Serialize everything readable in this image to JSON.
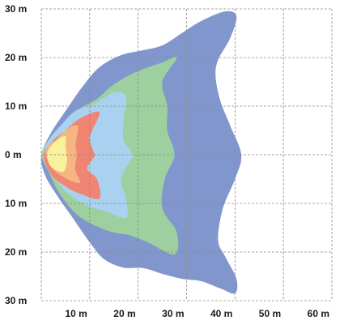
{
  "chart_data": {
    "type": "area",
    "title": "",
    "xlabel": "",
    "ylabel": "",
    "xlim": [
      0,
      60
    ],
    "ylim": [
      -30,
      30
    ],
    "grid": true,
    "y_ticks": [
      {
        "value": 30,
        "label": "30 m"
      },
      {
        "value": 20,
        "label": "20 m"
      },
      {
        "value": 10,
        "label": "10 m"
      },
      {
        "value": 0,
        "label": "0 m"
      },
      {
        "value": -10,
        "label": "10 m"
      },
      {
        "value": -20,
        "label": "20 m"
      },
      {
        "value": -30,
        "label": "30 m"
      }
    ],
    "x_ticks": [
      {
        "value": 10,
        "label": "10 m"
      },
      {
        "value": 20,
        "label": "20 m"
      },
      {
        "value": 30,
        "label": "30 m"
      },
      {
        "value": 40,
        "label": "40 m"
      },
      {
        "value": 50,
        "label": "50 m"
      },
      {
        "value": 60,
        "label": "60 m"
      }
    ],
    "series": [
      {
        "color": "#8096cd",
        "points": [
          [
            0,
            0
          ],
          [
            0.7,
            -4
          ],
          [
            3,
            -8
          ],
          [
            6.5,
            -13
          ],
          [
            10,
            -18
          ],
          [
            13,
            -21.5
          ],
          [
            17,
            -23.2
          ],
          [
            21,
            -23.3
          ],
          [
            25,
            -24.5
          ],
          [
            29,
            -25.5
          ],
          [
            33,
            -26
          ],
          [
            37,
            -27.5
          ],
          [
            40,
            -28.5
          ],
          [
            40.3,
            -25.5
          ],
          [
            38,
            -21
          ],
          [
            36.5,
            -17.5
          ],
          [
            37.5,
            -11
          ],
          [
            40,
            -5
          ],
          [
            41.3,
            0
          ],
          [
            39,
            6
          ],
          [
            37,
            11
          ],
          [
            36,
            16
          ],
          [
            36.5,
            19.5
          ],
          [
            39,
            24
          ],
          [
            40.3,
            28.5
          ],
          [
            38,
            29.5
          ],
          [
            33,
            27.5
          ],
          [
            29,
            25
          ],
          [
            25,
            22.5
          ],
          [
            21,
            21.5
          ],
          [
            16.5,
            20.5
          ],
          [
            12,
            18
          ],
          [
            8.5,
            14
          ],
          [
            5,
            9
          ],
          [
            2,
            4.5
          ]
        ]
      },
      {
        "color": "#9dd09e",
        "points": [
          [
            0,
            0
          ],
          [
            1.5,
            -3.5
          ],
          [
            3.5,
            -7.5
          ],
          [
            7,
            -12
          ],
          [
            11,
            -14.5
          ],
          [
            15,
            -16
          ],
          [
            18,
            -16.5
          ],
          [
            22,
            -18
          ],
          [
            27.5,
            -20.5
          ],
          [
            28,
            -16
          ],
          [
            25,
            -11
          ],
          [
            25.5,
            -5
          ],
          [
            27.5,
            0
          ],
          [
            26,
            5
          ],
          [
            26,
            10
          ],
          [
            25,
            15
          ],
          [
            28,
            20
          ],
          [
            25,
            19
          ],
          [
            19.5,
            17
          ],
          [
            15,
            14.5
          ],
          [
            11.5,
            11.5
          ],
          [
            8,
            9.5
          ],
          [
            4,
            6
          ],
          [
            1.5,
            3
          ]
        ]
      },
      {
        "color": "#a8d2ef",
        "points": [
          [
            0.3,
            0
          ],
          [
            2,
            -3.5
          ],
          [
            5,
            -7.5
          ],
          [
            9.5,
            -10.5
          ],
          [
            13,
            -11.5
          ],
          [
            17.5,
            -13
          ],
          [
            17.5,
            -9
          ],
          [
            16.5,
            -5
          ],
          [
            18.5,
            -1
          ],
          [
            19,
            0
          ],
          [
            17,
            3
          ],
          [
            17,
            7
          ],
          [
            17.5,
            12
          ],
          [
            15,
            12.8
          ],
          [
            11,
            10.5
          ],
          [
            7,
            9
          ],
          [
            4,
            6
          ],
          [
            1.5,
            3
          ]
        ]
      },
      {
        "color": "#f08574",
        "points": [
          [
            0.5,
            0
          ],
          [
            2,
            -4
          ],
          [
            5,
            -6.5
          ],
          [
            8,
            -8
          ],
          [
            12,
            -9
          ],
          [
            11.5,
            -5
          ],
          [
            9.5,
            -3
          ],
          [
            10.5,
            -1
          ],
          [
            11,
            0
          ],
          [
            10,
            3
          ],
          [
            10.5,
            5
          ],
          [
            12,
            8.8
          ],
          [
            8,
            7.5
          ],
          [
            5,
            5
          ],
          [
            2.5,
            3
          ]
        ]
      },
      {
        "color": "#f6b681",
        "points": [
          [
            0.9,
            0
          ],
          [
            2.5,
            -3
          ],
          [
            5,
            -4.8
          ],
          [
            8,
            -5.8
          ],
          [
            7,
            -3
          ],
          [
            7.3,
            0
          ],
          [
            7.1,
            2
          ],
          [
            7.5,
            6
          ],
          [
            5,
            5
          ],
          [
            3,
            3
          ],
          [
            1.5,
            2
          ]
        ]
      },
      {
        "color": "#f7f29b",
        "points": [
          [
            1.2,
            0
          ],
          [
            2,
            -2.5
          ],
          [
            4.5,
            -3.5
          ],
          [
            5.3,
            -1.5
          ],
          [
            5.2,
            0
          ],
          [
            5,
            2
          ],
          [
            5,
            3.8
          ],
          [
            3.5,
            3.2
          ],
          [
            2,
            1.8
          ]
        ]
      }
    ]
  }
}
